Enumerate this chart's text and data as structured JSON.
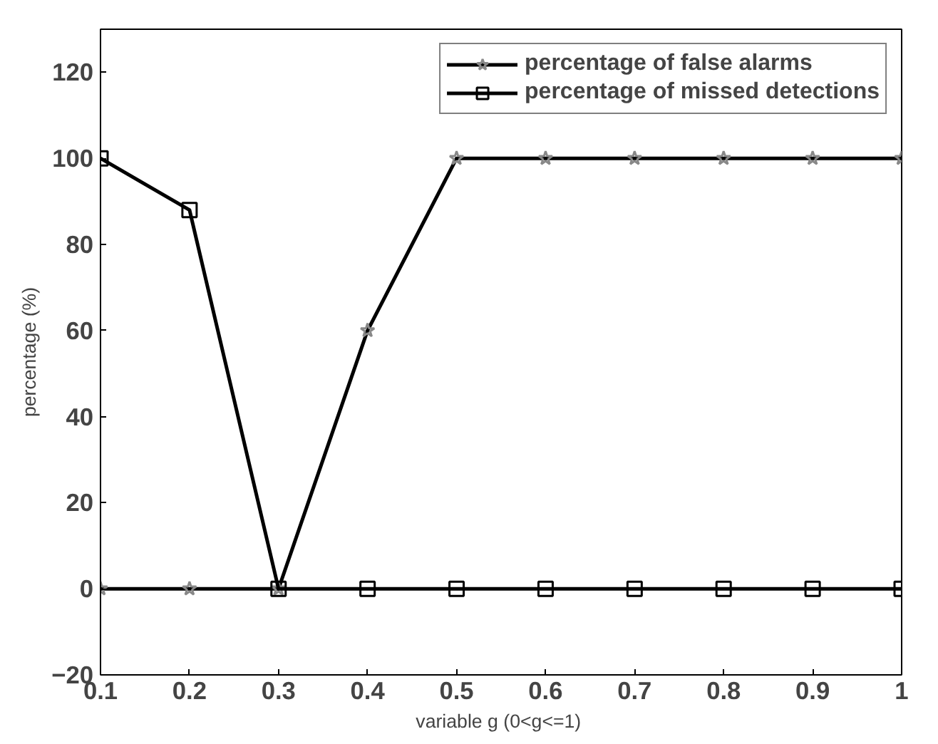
{
  "chart_data": {
    "type": "line",
    "xlabel": "variable g  (0<g<=1)",
    "ylabel": "percentage (%)",
    "x": [
      0.1,
      0.2,
      0.3,
      0.4,
      0.5,
      0.6,
      0.7,
      0.8,
      0.9,
      1.0
    ],
    "series": [
      {
        "name": "percentage of false alarms",
        "color": "#000000",
        "marker": "star",
        "values": [
          0,
          0,
          0,
          60,
          100,
          100,
          100,
          100,
          100,
          100
        ]
      },
      {
        "name": "percentage of missed detections",
        "color": "#000000",
        "marker": "square",
        "values": [
          100,
          88,
          0,
          0,
          0,
          0,
          0,
          0,
          0,
          0
        ]
      }
    ],
    "xlim": [
      0.1,
      1.0
    ],
    "ylim": [
      -20,
      130
    ],
    "xticks": [
      0.1,
      0.2,
      0.3,
      0.4,
      0.5,
      0.6,
      0.7,
      0.8,
      0.9,
      1
    ],
    "yticks": [
      -20,
      0,
      20,
      40,
      60,
      80,
      100,
      120
    ],
    "legend": "top right",
    "grid": false,
    "line_style": "solid"
  }
}
